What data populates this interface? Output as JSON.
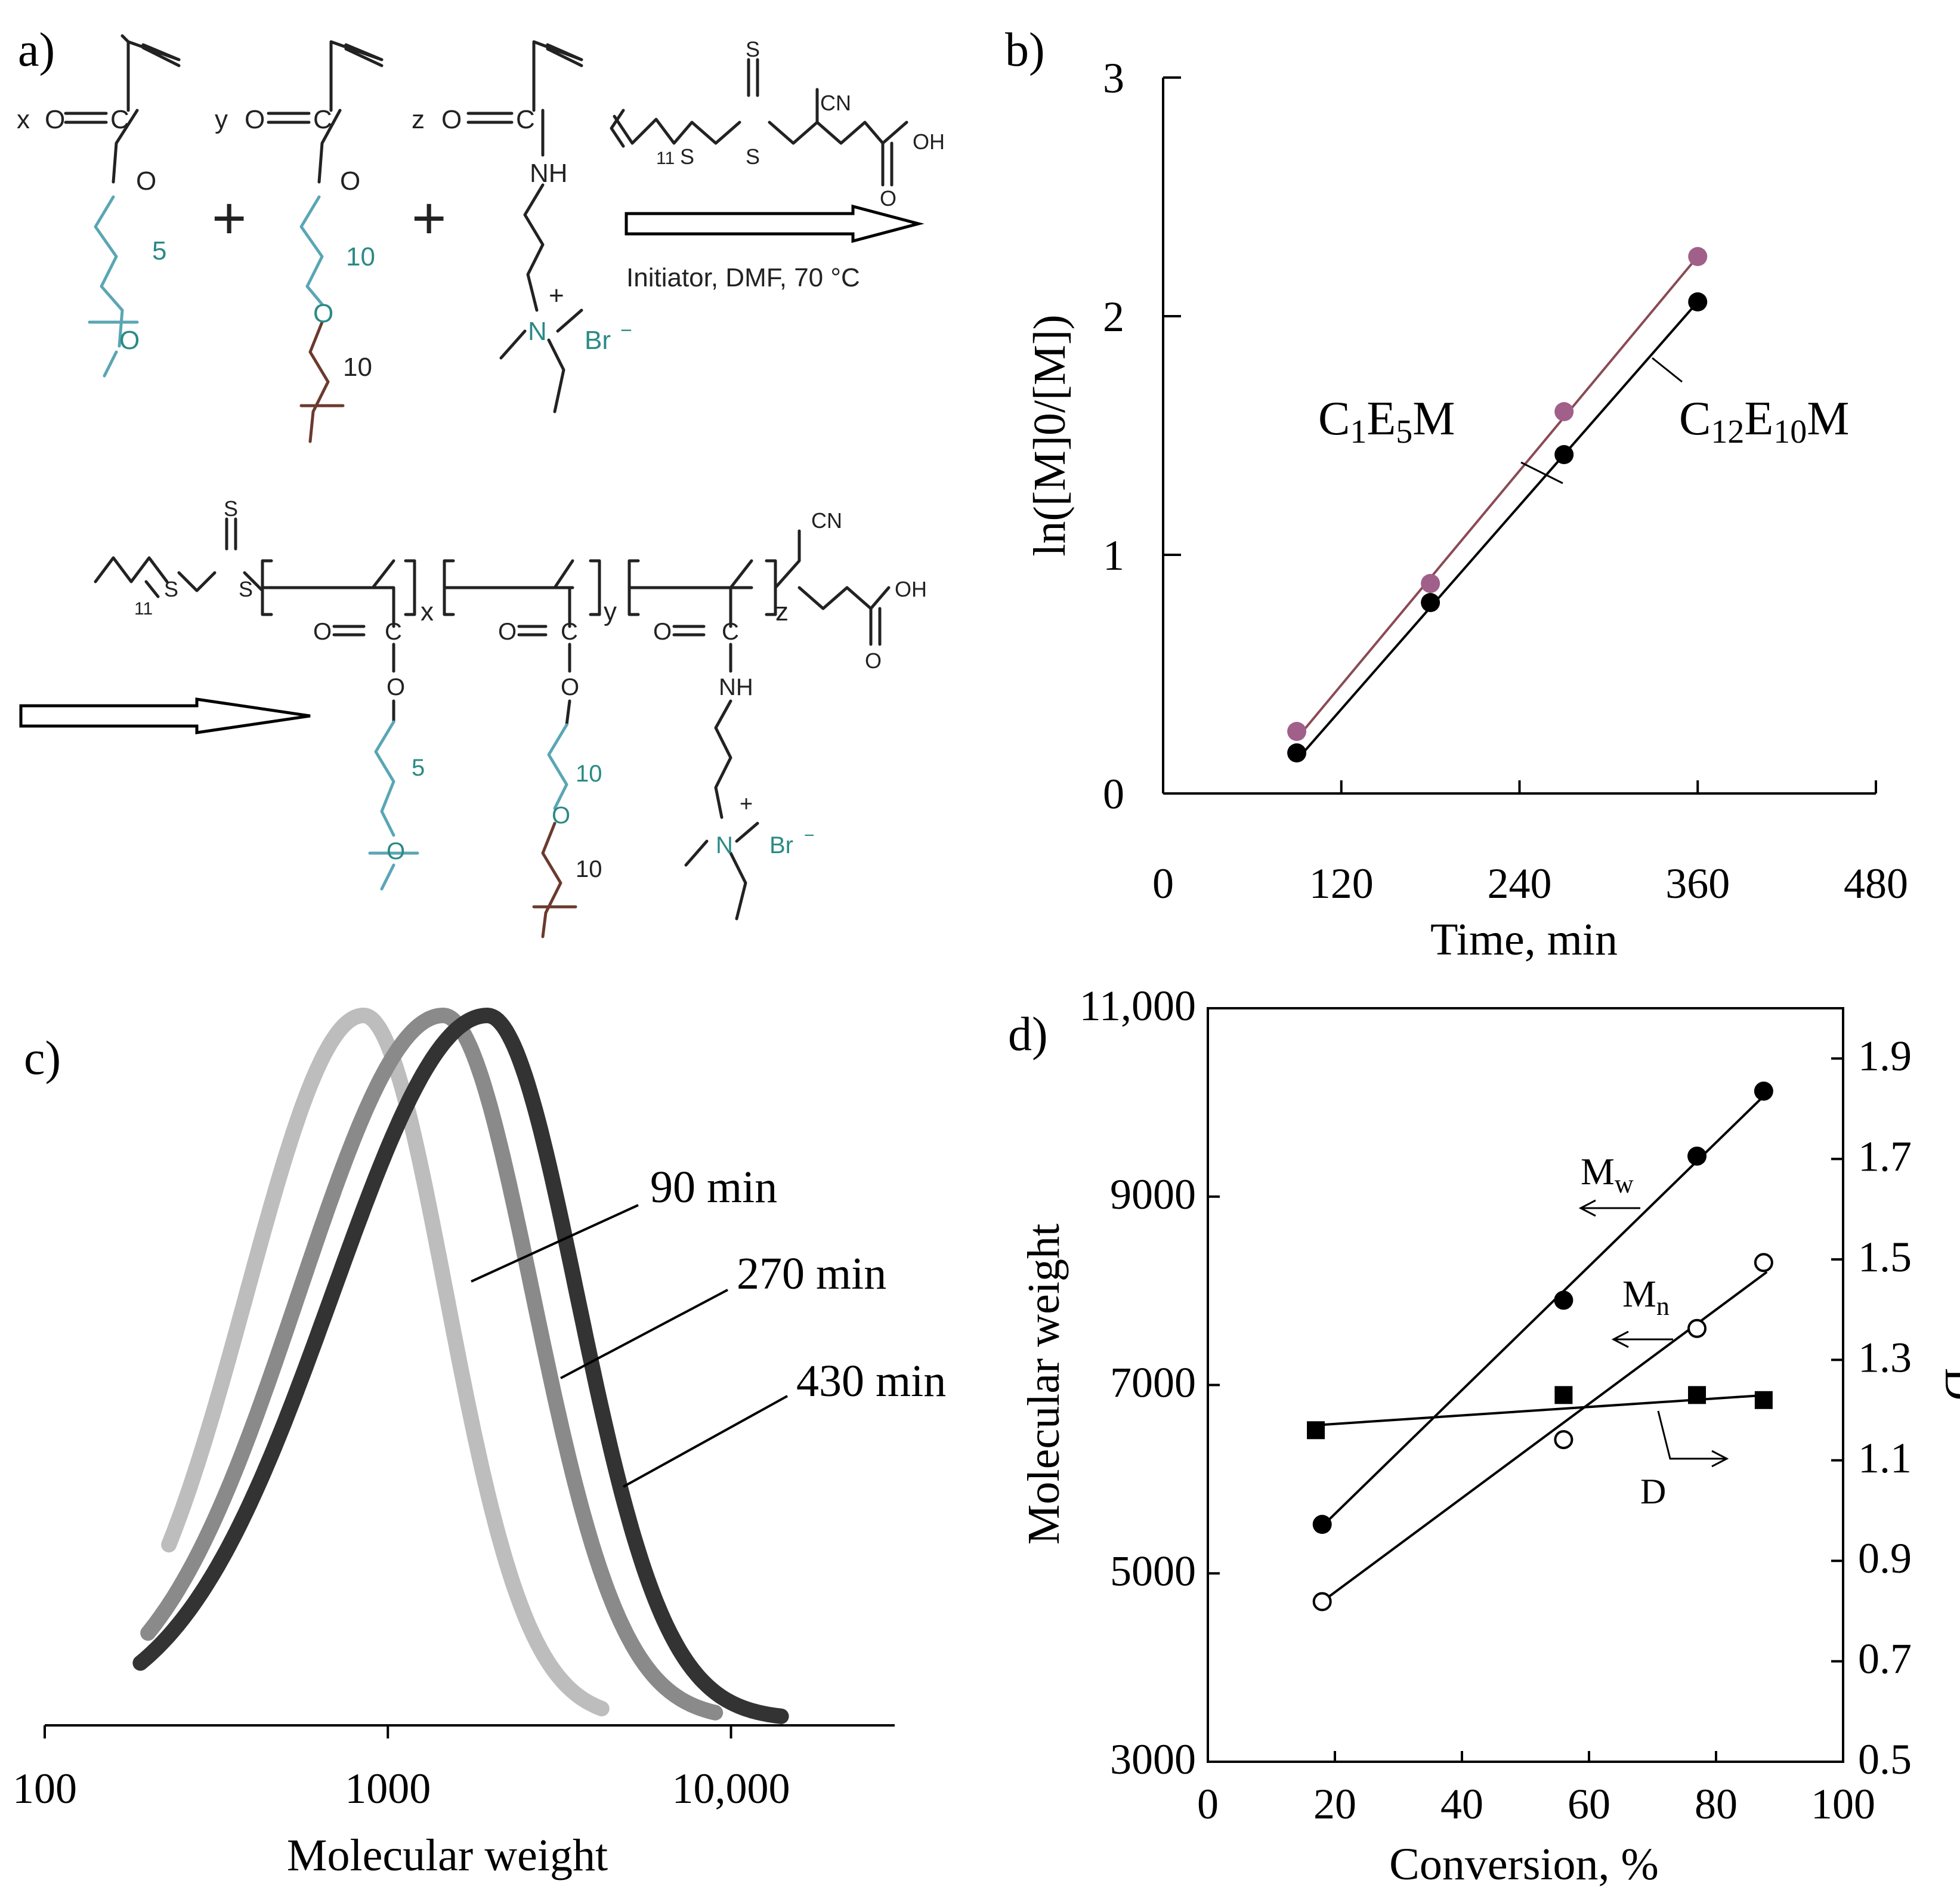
{
  "panel_a": {
    "label": "a)",
    "monomer_coeffs": [
      "x",
      "y",
      "z"
    ],
    "plus": "+",
    "atoms": {
      "O": "O",
      "C": "C",
      "NH": "NH",
      "N": "N",
      "plus_charge": "+",
      "Br": "Br",
      "minus": "−",
      "S": "S",
      "CN": "CN",
      "OH": "OH"
    },
    "repeat_5": "5",
    "repeat_10": "10",
    "repeat_11": "11",
    "conditions": "Initiator, DMF, 70 °C",
    "product_subscripts": [
      "x",
      "y",
      "z"
    ]
  },
  "chart_data": [
    {
      "panel": "b)",
      "type": "line",
      "xlabel": "Time, min",
      "ylabel": "ln([M]0/[M])",
      "xlim": [
        0,
        480
      ],
      "ylim": [
        0,
        3
      ],
      "xticks": [
        0,
        120,
        240,
        360,
        480
      ],
      "yticks": [
        0,
        1,
        2,
        3
      ],
      "series": [
        {
          "name": "C1E5M",
          "label_main": "C",
          "label_sub1": "1",
          "label_mid": "E",
          "label_sub2": "5",
          "label_end": "M",
          "color": "#a0608a",
          "x": [
            90,
            180,
            270,
            360
          ],
          "y": [
            0.26,
            0.88,
            1.6,
            2.25
          ],
          "fit": [
            [
              90,
              0.23
            ],
            [
              360,
              2.25
            ]
          ]
        },
        {
          "name": "C12E10M",
          "label_main": "C",
          "label_sub1": "12",
          "label_mid": "E",
          "label_sub2": "10",
          "label_end": "M",
          "color": "#000000",
          "x": [
            90,
            180,
            270,
            360
          ],
          "y": [
            0.17,
            0.8,
            1.42,
            2.06
          ],
          "fit": [
            [
              90,
              0.14
            ],
            [
              360,
              2.06
            ]
          ]
        }
      ]
    },
    {
      "panel": "c)",
      "type": "line",
      "xlabel": "Molecular weight",
      "xscale": "log",
      "xlim": [
        100,
        30000
      ],
      "xticks": [
        100,
        1000,
        10000
      ],
      "xtick_labels": [
        "100",
        "1000",
        "10,000"
      ],
      "series": [
        {
          "name": "90 min",
          "color": "#bdbdbd",
          "peak": 850,
          "sigma_left": 0.34,
          "sigma_right": 0.24,
          "min": 230,
          "max": 4200
        },
        {
          "name": "270 min",
          "color": "#8a8a8a",
          "peak": 1450,
          "sigma_left": 0.42,
          "sigma_right": 0.26,
          "min": 200,
          "max": 9000
        },
        {
          "name": "430 min",
          "color": "#333333",
          "peak": 1950,
          "sigma_left": 0.45,
          "sigma_right": 0.26,
          "min": 190,
          "max": 14000
        }
      ]
    },
    {
      "panel": "d)",
      "type": "scatter",
      "xlabel": "Conversion, %",
      "ylabel": "Molecular weight",
      "y2label": "D",
      "xlim": [
        0,
        100
      ],
      "ylim": [
        3000,
        11000
      ],
      "y2lim": [
        0.5,
        2.0
      ],
      "xticks": [
        0,
        20,
        40,
        60,
        80,
        100
      ],
      "yticks": [
        3000,
        5000,
        7000,
        9000,
        11000
      ],
      "ytick_labels": [
        "3000",
        "5000",
        "7000",
        "9000",
        "11,000"
      ],
      "y2ticks": [
        0.5,
        0.7,
        0.9,
        1.1,
        1.3,
        1.5,
        1.7,
        1.9
      ],
      "series": [
        {
          "name": "Mw",
          "label_main": "M",
          "label_sub": "w",
          "marker": "filled-circle",
          "axis": "left",
          "x": [
            18,
            56,
            77,
            87.5
          ],
          "y": [
            5520,
            7900,
            9430,
            10120
          ],
          "fit": [
            [
              18,
              5500
            ],
            [
              88,
              10100
            ]
          ]
        },
        {
          "name": "Mn",
          "label_main": "M",
          "label_sub": "n",
          "marker": "open-circle",
          "axis": "left",
          "x": [
            18,
            56,
            77,
            87.5
          ],
          "y": [
            4700,
            6420,
            7600,
            8300
          ],
          "fit": [
            [
              18,
              4700
            ],
            [
              88,
              8200
            ]
          ]
        },
        {
          "name": "D",
          "label_main": "D",
          "marker": "filled-square",
          "axis": "right",
          "x": [
            17,
            56,
            77,
            87.5
          ],
          "y": [
            1.16,
            1.23,
            1.23,
            1.22
          ],
          "fit": [
            [
              17,
              1.17
            ],
            [
              88,
              1.23
            ]
          ]
        }
      ]
    }
  ]
}
